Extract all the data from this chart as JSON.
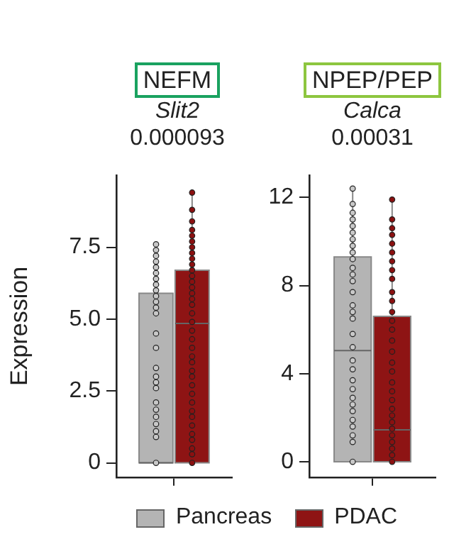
{
  "chart_data": [
    {
      "type": "box",
      "title": "NEFM",
      "subtitle": "Slit2",
      "ylabel": "Expression",
      "annotations": [
        "0.000093"
      ],
      "categories": [
        null
      ],
      "ylim": [
        -0.5,
        10
      ],
      "yticks": [
        0,
        2.5,
        {
          "value": 5,
          "label": "5.0"
        },
        7.5
      ],
      "tick_labels": "y",
      "legend": "bottom",
      "series": [
        {
          "name": "Pancreas",
          "color": "#b4b4b4",
          "boxes": [
            {
              "low": 0,
              "q1": 0,
              "median": 0,
              "q3": 5.9,
              "high": 7.6
            }
          ]
        },
        {
          "name": "PDAC",
          "color": "#8e1414",
          "boxes": [
            {
              "low": 0,
              "q1": 0,
              "median": 4.85,
              "q3": 6.7,
              "high": 9.4
            }
          ]
        },
        {
          "type": "scatter",
          "color": "#c8c8c8",
          "x": [
            null,
            null,
            null,
            null,
            null,
            null,
            null,
            null,
            null,
            null,
            null,
            null,
            null,
            null,
            null,
            null,
            null,
            null,
            null,
            null,
            null,
            null,
            null,
            null,
            null,
            null
          ],
          "values": [
            0,
            0.9,
            1.1,
            1.35,
            1.6,
            1.85,
            2.1,
            2.6,
            2.8,
            3.0,
            3.3,
            4.0,
            4.5,
            5.2,
            5.4,
            5.6,
            5.8,
            6.0,
            6.2,
            6.4,
            6.6,
            6.8,
            7.0,
            7.2,
            7.4,
            7.6
          ]
        },
        {
          "type": "scatter",
          "color": "#8b1010",
          "x": [
            null,
            null,
            null,
            null,
            null,
            null,
            null,
            null,
            null,
            null,
            null,
            null,
            null,
            null,
            null,
            null,
            null,
            null,
            null,
            null,
            null,
            null,
            null,
            null,
            null,
            null,
            null,
            null,
            null,
            null,
            null,
            null,
            null,
            null,
            null,
            null,
            null
          ],
          "values": [
            0,
            0.3,
            0.5,
            0.8,
            1.0,
            1.3,
            1.6,
            1.8,
            2.1,
            2.4,
            2.7,
            3.0,
            3.2,
            3.5,
            3.7,
            4.0,
            4.3,
            4.6,
            4.9,
            5.2,
            5.5,
            5.7,
            5.9,
            6.1,
            6.3,
            6.5,
            6.7,
            6.9,
            7.1,
            7.3,
            7.5,
            7.7,
            7.9,
            8.1,
            8.4,
            8.8,
            9.4
          ]
        }
      ]
    },
    {
      "type": "box",
      "title": "NPEP/PEP",
      "subtitle": "Calca",
      "annotations": [
        "0.00031"
      ],
      "categories": [
        null
      ],
      "ylim": [
        -0.7,
        13
      ],
      "yticks": [
        0,
        4,
        8,
        12
      ],
      "tick_labels": "y",
      "series": [
        {
          "color": "#b4b4b4",
          "boxes": [
            {
              "low": 0,
              "q1": 0,
              "median": 5.05,
              "q3": 9.3,
              "high": 12.4
            }
          ]
        },
        {
          "color": "#8e1414",
          "boxes": [
            {
              "low": 0,
              "q1": 0,
              "median": 1.45,
              "q3": 6.6,
              "high": 11.9
            }
          ]
        },
        {
          "type": "scatter",
          "color": "#c8c8c8",
          "x": [
            null,
            null,
            null,
            null,
            null,
            null,
            null,
            null,
            null,
            null,
            null,
            null,
            null,
            null,
            null,
            null,
            null,
            null,
            null,
            null,
            null,
            null,
            null,
            null,
            null,
            null,
            null,
            null,
            null,
            null,
            null
          ],
          "values": [
            0,
            0.9,
            1.2,
            1.6,
            1.9,
            2.3,
            2.6,
            2.9,
            3.3,
            3.7,
            4.2,
            4.6,
            5.2,
            5.8,
            6.5,
            6.8,
            7.1,
            7.7,
            8.2,
            8.5,
            8.8,
            9.2,
            9.5,
            9.8,
            10.1,
            10.4,
            10.7,
            11.0,
            11.3,
            11.7,
            12.4
          ]
        },
        {
          "type": "scatter",
          "color": "#8b1010",
          "x": [
            null,
            null,
            null,
            null,
            null,
            null,
            null,
            null,
            null,
            null,
            null,
            null,
            null,
            null,
            null,
            null,
            null,
            null,
            null,
            null,
            null,
            null,
            null,
            null,
            null,
            null,
            null,
            null,
            null,
            null
          ],
          "values": [
            0,
            0.3,
            0.6,
            0.9,
            1.2,
            1.5,
            1.8,
            2.1,
            2.4,
            2.8,
            3.2,
            3.6,
            4.1,
            4.5,
            5.0,
            5.5,
            6.0,
            6.4,
            6.8,
            7.3,
            7.7,
            8.3,
            8.7,
            9.1,
            9.5,
            9.9,
            10.3,
            10.6,
            11.0,
            11.9
          ]
        }
      ]
    }
  ]
}
